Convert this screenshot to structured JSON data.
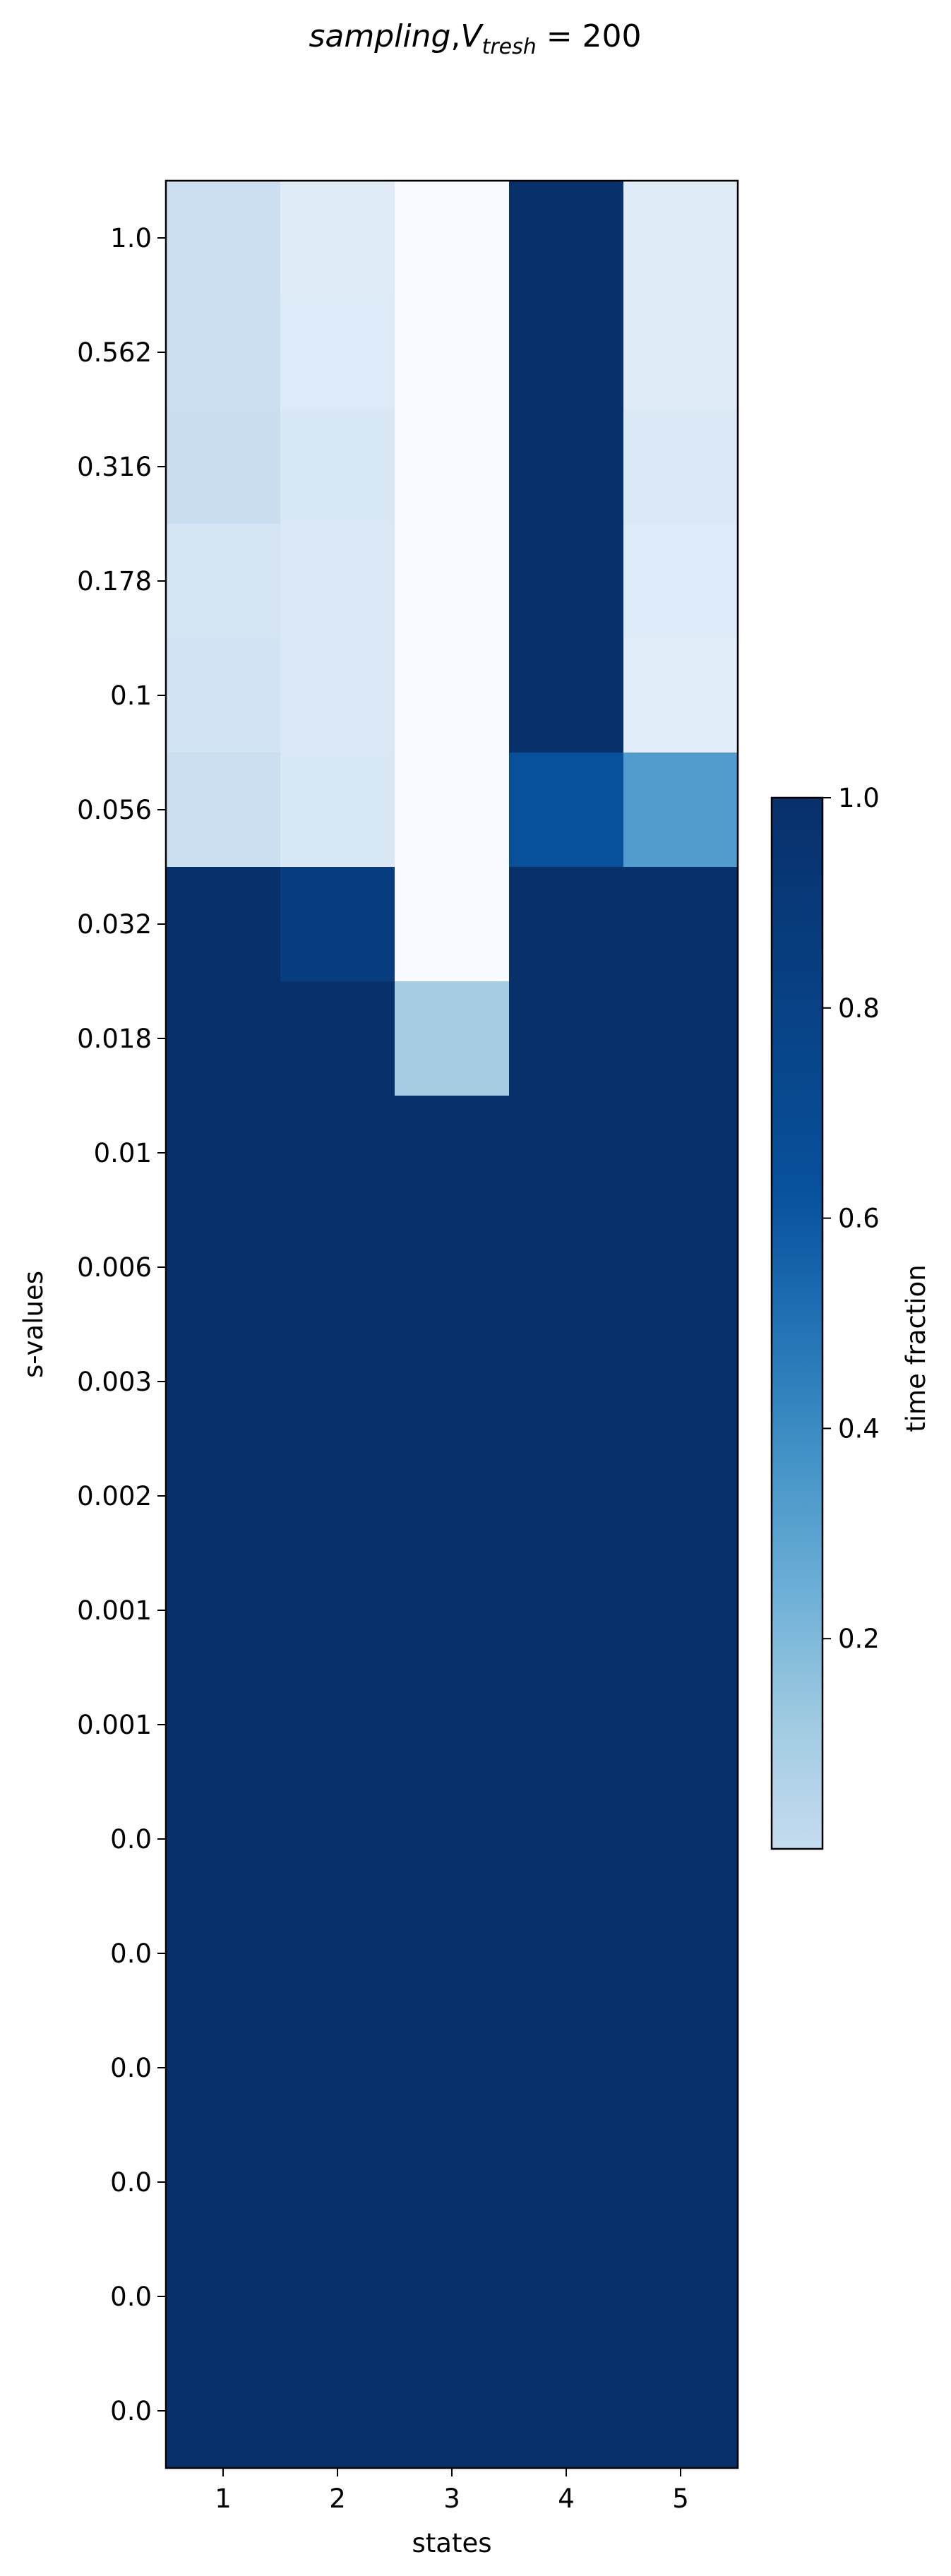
{
  "chart_data": {
    "type": "heatmap",
    "title": {
      "italic": "sampling",
      "comma": ",",
      "v": "V",
      "sub": "tresh",
      "rest": " = 200"
    },
    "xlabel": "states",
    "ylabel": "s-values",
    "x_categories": [
      "1",
      "2",
      "3",
      "4",
      "5"
    ],
    "y_categories": [
      "1.0",
      "0.562",
      "0.316",
      "0.178",
      "0.1",
      "0.056",
      "0.032",
      "0.018",
      "0.01",
      "0.006",
      "0.003",
      "0.002",
      "0.001",
      "0.001",
      "0.0",
      "0.0",
      "0.0",
      "0.0",
      "0.0",
      "0.0"
    ],
    "values": [
      [
        0.22,
        0.12,
        0.0,
        1.0,
        0.12
      ],
      [
        0.22,
        0.13,
        0.0,
        1.0,
        0.12
      ],
      [
        0.23,
        0.15,
        0.0,
        1.0,
        0.14
      ],
      [
        0.17,
        0.14,
        0.0,
        1.0,
        0.13
      ],
      [
        0.19,
        0.14,
        0.0,
        1.0,
        0.11
      ],
      [
        0.22,
        0.15,
        0.0,
        0.88,
        0.58
      ],
      [
        1.0,
        0.95,
        0.0,
        1.0,
        1.0
      ],
      [
        1.0,
        1.0,
        0.35,
        1.0,
        1.0
      ],
      [
        1.0,
        1.0,
        1.0,
        1.0,
        1.0
      ],
      [
        1.0,
        1.0,
        1.0,
        1.0,
        1.0
      ],
      [
        1.0,
        1.0,
        1.0,
        1.0,
        1.0
      ],
      [
        1.0,
        1.0,
        1.0,
        1.0,
        1.0
      ],
      [
        1.0,
        1.0,
        1.0,
        1.0,
        1.0
      ],
      [
        1.0,
        1.0,
        1.0,
        1.0,
        1.0
      ],
      [
        1.0,
        1.0,
        1.0,
        1.0,
        1.0
      ],
      [
        1.0,
        1.0,
        1.0,
        1.0,
        1.0
      ],
      [
        1.0,
        1.0,
        1.0,
        1.0,
        1.0
      ],
      [
        1.0,
        1.0,
        1.0,
        1.0,
        1.0
      ],
      [
        1.0,
        1.0,
        1.0,
        1.0,
        1.0
      ],
      [
        1.0,
        1.0,
        1.0,
        1.0,
        1.0
      ]
    ],
    "colormap": "Blues",
    "colorbar": {
      "label": "time fraction",
      "range": [
        0.0,
        1.0
      ],
      "ticks": [
        0.2,
        0.4,
        0.6,
        0.8,
        1.0
      ],
      "tick_labels": [
        "0.2",
        "0.4",
        "0.6",
        "0.8",
        "1.0"
      ]
    },
    "grid": false
  }
}
